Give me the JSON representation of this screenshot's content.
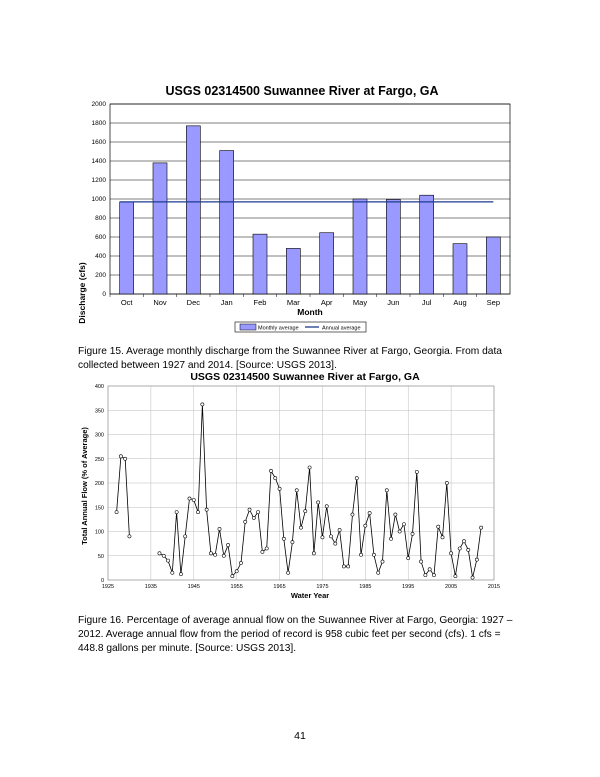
{
  "chart_data": [
    {
      "type": "bar",
      "title": "USGS 02314500 Suwannee River at Fargo, GA",
      "xlabel": "Month",
      "ylabel": "Discharge (cfs)",
      "ylim": [
        0,
        2000
      ],
      "yticks": [
        0,
        200,
        400,
        600,
        800,
        1000,
        1200,
        1400,
        1600,
        1800,
        2000
      ],
      "grid": true,
      "legend": "bottom",
      "categories": [
        "Oct",
        "Nov",
        "Dec",
        "Jan",
        "Feb",
        "Mar",
        "Apr",
        "May",
        "Jun",
        "Jul",
        "Aug",
        "Sep"
      ],
      "series": [
        {
          "name": "Monthly average",
          "color": "#9999ff",
          "values": [
            970,
            1380,
            1770,
            1510,
            630,
            480,
            645,
            1000,
            995,
            1040,
            530,
            600
          ]
        }
      ],
      "reference_line": {
        "name": "Annual average",
        "value": 970,
        "color": "#1f3a8f"
      }
    },
    {
      "type": "line",
      "title": "USGS 02314500 Suwannee River at Fargo, GA",
      "xlabel": "Water Year",
      "ylabel": "Total Annual Flow (% of Average)",
      "xlim": [
        1925,
        2015
      ],
      "ylim": [
        0,
        400
      ],
      "xticks": [
        1925,
        1935,
        1945,
        1955,
        1965,
        1975,
        1985,
        1995,
        2005,
        2015
      ],
      "yticks": [
        0,
        50,
        100,
        150,
        200,
        250,
        300,
        350,
        400
      ],
      "grid": true,
      "segments": [
        [
          [
            1927,
            140
          ],
          [
            1928,
            255
          ],
          [
            1929,
            250
          ],
          [
            1930,
            90
          ]
        ],
        [
          [
            1937,
            55
          ],
          [
            1938,
            50
          ],
          [
            1939,
            40
          ],
          [
            1940,
            15
          ],
          [
            1941,
            140
          ],
          [
            1942,
            12
          ],
          [
            1943,
            90
          ],
          [
            1944,
            168
          ],
          [
            1945,
            165
          ],
          [
            1946,
            140
          ],
          [
            1947,
            362
          ],
          [
            1948,
            145
          ],
          [
            1949,
            55
          ],
          [
            1950,
            52
          ],
          [
            1951,
            105
          ],
          [
            1952,
            50
          ],
          [
            1953,
            72
          ],
          [
            1954,
            8
          ],
          [
            1955,
            18
          ],
          [
            1956,
            35
          ],
          [
            1957,
            120
          ],
          [
            1958,
            145
          ],
          [
            1959,
            128
          ],
          [
            1960,
            140
          ],
          [
            1961,
            58
          ],
          [
            1962,
            65
          ],
          [
            1963,
            225
          ],
          [
            1964,
            210
          ],
          [
            1965,
            188
          ],
          [
            1966,
            85
          ],
          [
            1967,
            15
          ],
          [
            1968,
            78
          ],
          [
            1969,
            185
          ],
          [
            1970,
            108
          ],
          [
            1971,
            142
          ],
          [
            1972,
            232
          ],
          [
            1973,
            55
          ],
          [
            1974,
            160
          ],
          [
            1975,
            88
          ],
          [
            1976,
            152
          ],
          [
            1977,
            90
          ],
          [
            1978,
            75
          ],
          [
            1979,
            103
          ],
          [
            1980,
            28
          ],
          [
            1981,
            28
          ],
          [
            1982,
            135
          ],
          [
            1983,
            210
          ],
          [
            1984,
            52
          ],
          [
            1985,
            112
          ],
          [
            1986,
            138
          ],
          [
            1987,
            52
          ],
          [
            1988,
            15
          ],
          [
            1989,
            38
          ],
          [
            1990,
            185
          ],
          [
            1991,
            85
          ],
          [
            1992,
            135
          ],
          [
            1993,
            100
          ],
          [
            1994,
            115
          ],
          [
            1995,
            45
          ],
          [
            1996,
            95
          ],
          [
            1997,
            223
          ],
          [
            1998,
            38
          ],
          [
            1999,
            10
          ],
          [
            2000,
            22
          ],
          [
            2001,
            10
          ],
          [
            2002,
            110
          ],
          [
            2003,
            88
          ],
          [
            2004,
            200
          ],
          [
            2005,
            55
          ],
          [
            2006,
            8
          ],
          [
            2007,
            65
          ],
          [
            2008,
            80
          ],
          [
            2009,
            62
          ],
          [
            2010,
            5
          ],
          [
            2011,
            42
          ],
          [
            2012,
            108
          ]
        ]
      ]
    }
  ],
  "captions": {
    "figure15": "Figure 15. Average monthly discharge from the Suwannee River at Fargo, Georgia. From data collected between 1927 and 2014.  [Source: USGS 2013].",
    "figure16": "Figure 16. Percentage of average annual flow on the Suwannee River at Fargo, Georgia: 1927 – 2012. Average annual flow from the period of record is 958 cubic feet per second (cfs). 1 cfs = 448.8 gallons per minute. [Source: USGS 2013]."
  },
  "page_number": "41"
}
